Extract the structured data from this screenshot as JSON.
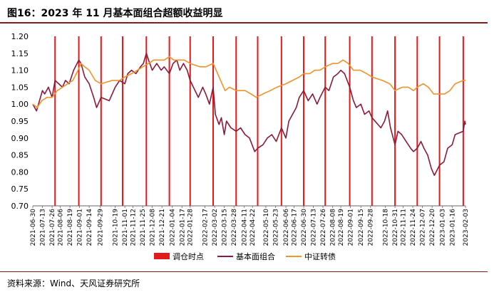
{
  "figure": {
    "title": "图16：2023 年 11 月基本面组合超额收益明显",
    "source": "资料来源：Wind、天风证券研究所"
  },
  "colors": {
    "rebalance": "#e31a1c",
    "fundamental": "#8b1a3a",
    "index": "#f0932b",
    "rule": "#8b1a1a"
  },
  "chart_data": {
    "type": "line",
    "ylim": [
      0.7,
      1.2
    ],
    "yticks": [
      "0.70",
      "0.75",
      "0.80",
      "0.85",
      "0.90",
      "0.95",
      "1.00",
      "1.05",
      "1.10",
      "1.15",
      "1.20"
    ],
    "x_start": "2021-06-30",
    "x_end": "2023-02-03",
    "xticks": [
      "2021-06-30",
      "2021-07-13",
      "2021-07-26",
      "2021-08-06",
      "2021-08-19",
      "2021-09-01",
      "2021-09-14",
      "2021-09-29",
      "2021-10-19",
      "2021-11-01",
      "2021-11-12",
      "2021-11-25",
      "2021-12-08",
      "2021-12-21",
      "2022-01-04",
      "2022-01-17",
      "2022-01-28",
      "2022-02-17",
      "2022-03-02",
      "2022-03-15",
      "2022-03-28",
      "2022-04-11",
      "2022-04-22",
      "2022-05-10",
      "2022-05-23",
      "2022-06-06",
      "2022-06-17",
      "2022-06-30",
      "2022-07-13",
      "2022-07-26",
      "2022-08-08",
      "2022-08-19",
      "2022-09-01",
      "2022-09-15",
      "2022-09-28",
      "2022-10-18",
      "2022-10-31",
      "2022-11-11",
      "2022-11-24",
      "2022-12-07",
      "2022-12-20",
      "2023-01-03",
      "2023-01-16",
      "2023-02-03"
    ],
    "rebalance_dates": [
      "2021-07-30",
      "2021-08-31",
      "2021-09-30",
      "2021-10-29",
      "2021-11-30",
      "2021-12-31",
      "2022-01-28",
      "2022-02-28",
      "2022-03-31",
      "2022-04-29",
      "2022-05-31",
      "2022-06-30",
      "2022-07-29",
      "2022-08-31",
      "2022-09-30",
      "2022-10-31",
      "2022-11-30",
      "2022-12-30",
      "2023-01-31"
    ],
    "legend": [
      "调仓时点",
      "基本面组合",
      "中证转债"
    ],
    "series": [
      {
        "name": "基本面组合",
        "points": [
          [
            "2021-06-30",
            1.0
          ],
          [
            "2021-07-05",
            0.98
          ],
          [
            "2021-07-09",
            1.01
          ],
          [
            "2021-07-13",
            1.04
          ],
          [
            "2021-07-16",
            1.03
          ],
          [
            "2021-07-21",
            1.05
          ],
          [
            "2021-07-26",
            1.02
          ],
          [
            "2021-07-30",
            1.07
          ],
          [
            "2021-08-04",
            1.06
          ],
          [
            "2021-08-09",
            1.05
          ],
          [
            "2021-08-13",
            1.07
          ],
          [
            "2021-08-18",
            1.06
          ],
          [
            "2021-08-24",
            1.1
          ],
          [
            "2021-08-31",
            1.13
          ],
          [
            "2021-09-03",
            1.12
          ],
          [
            "2021-09-08",
            1.08
          ],
          [
            "2021-09-14",
            1.06
          ],
          [
            "2021-09-20",
            1.02
          ],
          [
            "2021-09-24",
            0.99
          ],
          [
            "2021-09-30",
            1.02
          ],
          [
            "2021-10-11",
            1.01
          ],
          [
            "2021-10-19",
            1.05
          ],
          [
            "2021-10-25",
            1.07
          ],
          [
            "2021-11-01",
            1.06
          ],
          [
            "2021-11-05",
            1.09
          ],
          [
            "2021-11-10",
            1.1
          ],
          [
            "2021-11-16",
            1.09
          ],
          [
            "2021-11-22",
            1.11
          ],
          [
            "2021-11-26",
            1.12
          ],
          [
            "2021-11-30",
            1.15
          ],
          [
            "2021-12-03",
            1.13
          ],
          [
            "2021-12-08",
            1.1
          ],
          [
            "2021-12-14",
            1.12
          ],
          [
            "2021-12-20",
            1.1
          ],
          [
            "2021-12-24",
            1.11
          ],
          [
            "2021-12-31",
            1.09
          ],
          [
            "2022-01-05",
            1.12
          ],
          [
            "2022-01-10",
            1.13
          ],
          [
            "2022-01-14",
            1.1
          ],
          [
            "2022-01-19",
            1.12
          ],
          [
            "2022-01-24",
            1.1
          ],
          [
            "2022-01-28",
            1.07
          ],
          [
            "2022-02-08",
            1.02
          ],
          [
            "2022-02-14",
            1.05
          ],
          [
            "2022-02-18",
            1.03
          ],
          [
            "2022-02-23",
            1.0
          ],
          [
            "2022-02-28",
            1.05
          ],
          [
            "2022-03-03",
            0.97
          ],
          [
            "2022-03-08",
            0.94
          ],
          [
            "2022-03-11",
            0.96
          ],
          [
            "2022-03-15",
            0.91
          ],
          [
            "2022-03-18",
            0.95
          ],
          [
            "2022-03-24",
            0.93
          ],
          [
            "2022-03-31",
            0.92
          ],
          [
            "2022-04-06",
            0.93
          ],
          [
            "2022-04-12",
            0.91
          ],
          [
            "2022-04-18",
            0.9
          ],
          [
            "2022-04-25",
            0.86
          ],
          [
            "2022-04-29",
            0.87
          ],
          [
            "2022-05-06",
            0.88
          ],
          [
            "2022-05-12",
            0.9
          ],
          [
            "2022-05-18",
            0.91
          ],
          [
            "2022-05-24",
            0.89
          ],
          [
            "2022-05-31",
            0.93
          ],
          [
            "2022-06-06",
            0.9
          ],
          [
            "2022-06-10",
            0.95
          ],
          [
            "2022-06-15",
            0.97
          ],
          [
            "2022-06-20",
            0.99
          ],
          [
            "2022-06-24",
            1.02
          ],
          [
            "2022-06-30",
            1.04
          ],
          [
            "2022-07-06",
            1.01
          ],
          [
            "2022-07-12",
            1.03
          ],
          [
            "2022-07-18",
            1.0
          ],
          [
            "2022-07-22",
            1.02
          ],
          [
            "2022-07-29",
            1.05
          ],
          [
            "2022-08-03",
            1.04
          ],
          [
            "2022-08-09",
            1.08
          ],
          [
            "2022-08-15",
            1.09
          ],
          [
            "2022-08-19",
            1.1
          ],
          [
            "2022-08-24",
            1.09
          ],
          [
            "2022-08-31",
            1.05
          ],
          [
            "2022-09-05",
            1.01
          ],
          [
            "2022-09-09",
            0.99
          ],
          [
            "2022-09-15",
            1.0
          ],
          [
            "2022-09-20",
            0.97
          ],
          [
            "2022-09-26",
            0.98
          ],
          [
            "2022-09-30",
            0.96
          ],
          [
            "2022-10-12",
            0.93
          ],
          [
            "2022-10-17",
            0.95
          ],
          [
            "2022-10-21",
            0.98
          ],
          [
            "2022-10-25",
            0.93
          ],
          [
            "2022-10-31",
            0.88
          ],
          [
            "2022-11-04",
            0.92
          ],
          [
            "2022-11-09",
            0.91
          ],
          [
            "2022-11-15",
            0.89
          ],
          [
            "2022-11-21",
            0.87
          ],
          [
            "2022-11-25",
            0.86
          ],
          [
            "2022-11-30",
            0.87
          ],
          [
            "2022-12-05",
            0.89
          ],
          [
            "2022-12-09",
            0.87
          ],
          [
            "2022-12-14",
            0.85
          ],
          [
            "2022-12-19",
            0.81
          ],
          [
            "2022-12-23",
            0.79
          ],
          [
            "2022-12-30",
            0.82
          ],
          [
            "2023-01-05",
            0.83
          ],
          [
            "2023-01-10",
            0.87
          ],
          [
            "2023-01-16",
            0.88
          ],
          [
            "2023-01-20",
            0.91
          ],
          [
            "2023-01-31",
            0.92
          ],
          [
            "2023-02-02",
            0.95
          ],
          [
            "2023-02-03",
            0.94
          ]
        ]
      },
      {
        "name": "中证转债",
        "points": [
          [
            "2021-06-30",
            1.0
          ],
          [
            "2021-07-06",
            0.99
          ],
          [
            "2021-07-12",
            1.01
          ],
          [
            "2021-07-19",
            1.02
          ],
          [
            "2021-07-26",
            1.02
          ],
          [
            "2021-08-02",
            1.04
          ],
          [
            "2021-08-09",
            1.05
          ],
          [
            "2021-08-16",
            1.06
          ],
          [
            "2021-08-23",
            1.07
          ],
          [
            "2021-08-30",
            1.1
          ],
          [
            "2021-09-03",
            1.12
          ],
          [
            "2021-09-08",
            1.11
          ],
          [
            "2021-09-14",
            1.1
          ],
          [
            "2021-09-22",
            1.07
          ],
          [
            "2021-09-30",
            1.06
          ],
          [
            "2021-10-15",
            1.07
          ],
          [
            "2021-10-25",
            1.07
          ],
          [
            "2021-11-01",
            1.08
          ],
          [
            "2021-11-10",
            1.09
          ],
          [
            "2021-11-18",
            1.1
          ],
          [
            "2021-11-25",
            1.11
          ],
          [
            "2021-12-03",
            1.12
          ],
          [
            "2021-12-10",
            1.13
          ],
          [
            "2021-12-17",
            1.13
          ],
          [
            "2021-12-24",
            1.13
          ],
          [
            "2021-12-31",
            1.14
          ],
          [
            "2022-01-06",
            1.13
          ],
          [
            "2022-01-13",
            1.13
          ],
          [
            "2022-01-20",
            1.13
          ],
          [
            "2022-01-28",
            1.12
          ],
          [
            "2022-02-10",
            1.11
          ],
          [
            "2022-02-18",
            1.11
          ],
          [
            "2022-02-28",
            1.12
          ],
          [
            "2022-03-04",
            1.1
          ],
          [
            "2022-03-10",
            1.07
          ],
          [
            "2022-03-16",
            1.04
          ],
          [
            "2022-03-22",
            1.05
          ],
          [
            "2022-03-31",
            1.04
          ],
          [
            "2022-04-12",
            1.04
          ],
          [
            "2022-04-20",
            1.03
          ],
          [
            "2022-04-27",
            1.02
          ],
          [
            "2022-05-06",
            1.03
          ],
          [
            "2022-05-16",
            1.04
          ],
          [
            "2022-05-25",
            1.05
          ],
          [
            "2022-06-06",
            1.06
          ],
          [
            "2022-06-15",
            1.07
          ],
          [
            "2022-06-24",
            1.08
          ],
          [
            "2022-06-30",
            1.09
          ],
          [
            "2022-07-08",
            1.09
          ],
          [
            "2022-07-15",
            1.1
          ],
          [
            "2022-07-22",
            1.1
          ],
          [
            "2022-07-29",
            1.11
          ],
          [
            "2022-08-08",
            1.12
          ],
          [
            "2022-08-15",
            1.12
          ],
          [
            "2022-08-22",
            1.13
          ],
          [
            "2022-08-29",
            1.12
          ],
          [
            "2022-09-05",
            1.1
          ],
          [
            "2022-09-14",
            1.1
          ],
          [
            "2022-09-23",
            1.09
          ],
          [
            "2022-09-30",
            1.08
          ],
          [
            "2022-10-14",
            1.07
          ],
          [
            "2022-10-24",
            1.06
          ],
          [
            "2022-10-31",
            1.04
          ],
          [
            "2022-11-10",
            1.05
          ],
          [
            "2022-11-18",
            1.05
          ],
          [
            "2022-11-25",
            1.04
          ],
          [
            "2022-11-30",
            1.05
          ],
          [
            "2022-12-08",
            1.06
          ],
          [
            "2022-12-15",
            1.05
          ],
          [
            "2022-12-22",
            1.03
          ],
          [
            "2022-12-30",
            1.03
          ],
          [
            "2023-01-06",
            1.03
          ],
          [
            "2023-01-13",
            1.04
          ],
          [
            "2023-01-20",
            1.06
          ],
          [
            "2023-01-31",
            1.07
          ],
          [
            "2023-02-03",
            1.07
          ]
        ]
      }
    ]
  }
}
